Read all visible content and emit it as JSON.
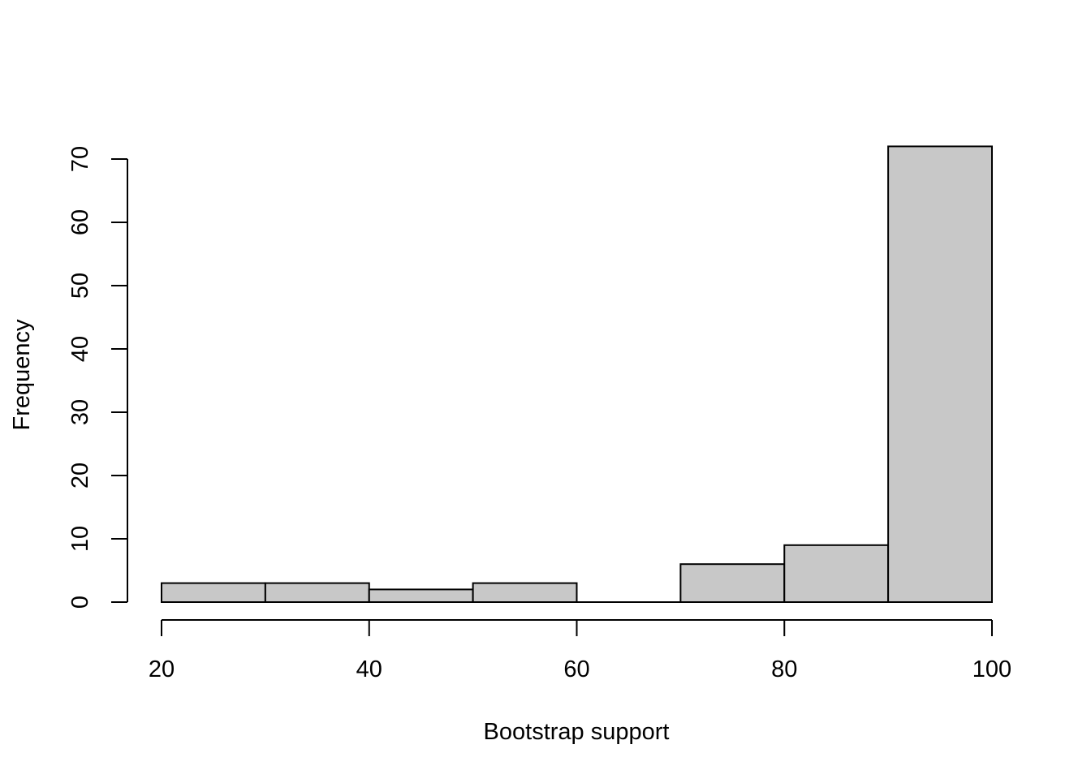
{
  "chart_data": {
    "type": "bar",
    "subtype": "histogram",
    "title": "",
    "xlabel": "Bootstrap support",
    "ylabel": "Frequency",
    "bins": [
      {
        "start": 20,
        "end": 30,
        "count": 3
      },
      {
        "start": 30,
        "end": 40,
        "count": 3
      },
      {
        "start": 40,
        "end": 50,
        "count": 2
      },
      {
        "start": 50,
        "end": 60,
        "count": 3
      },
      {
        "start": 60,
        "end": 70,
        "count": 0
      },
      {
        "start": 70,
        "end": 80,
        "count": 6
      },
      {
        "start": 80,
        "end": 90,
        "count": 9
      },
      {
        "start": 90,
        "end": 100,
        "count": 72
      }
    ],
    "xlim": [
      20,
      100
    ],
    "ylim": [
      0,
      72
    ],
    "xticks": [
      "20",
      "40",
      "60",
      "80",
      "100"
    ],
    "yticks": [
      "0",
      "10",
      "20",
      "30",
      "40",
      "50",
      "60",
      "70"
    ],
    "bar_color": "#c8c8c8",
    "grid": false,
    "legend": "none"
  }
}
